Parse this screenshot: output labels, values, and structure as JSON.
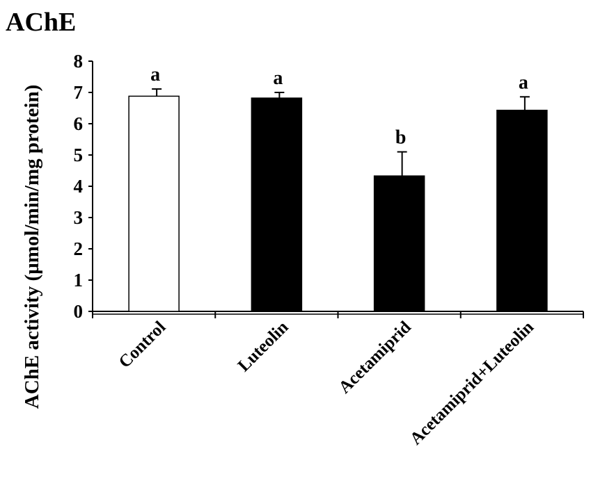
{
  "chart_data": {
    "type": "bar",
    "title": "AChE",
    "ylabel": "AChE activity (µmol/min/mg protein)",
    "xlabel": "",
    "categories": [
      "Control",
      "Luteolin",
      "Acetamiprid",
      "Acetamiprid+Luteolin"
    ],
    "values": [
      6.88,
      6.82,
      4.33,
      6.43
    ],
    "errors": [
      0.23,
      0.18,
      0.77,
      0.43
    ],
    "significance": [
      "a",
      "a",
      "b",
      "a"
    ],
    "fills": [
      "#ffffff",
      "#000000",
      "#000000",
      "#000000"
    ],
    "ylim": [
      0,
      8
    ],
    "yticks": [
      "0",
      "1",
      "2",
      "3",
      "4",
      "5",
      "6",
      "7",
      "8"
    ],
    "grid": false,
    "legend": "none"
  }
}
